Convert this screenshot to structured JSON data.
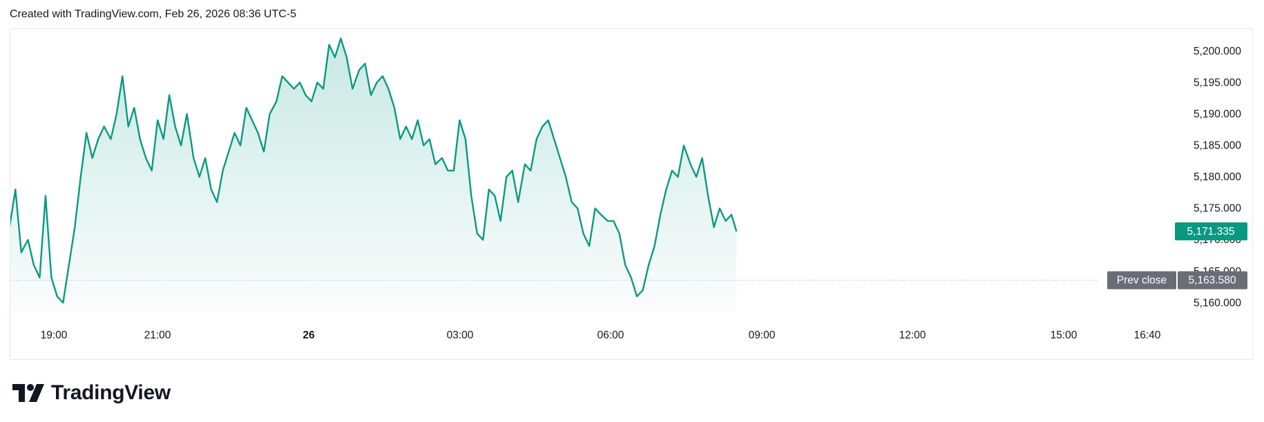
{
  "header": {
    "text": "Created with TradingView.com, Feb 26, 2026 08:36 UTC-5"
  },
  "brand": {
    "name": "TradingView",
    "icon": "tradingview-logo-icon"
  },
  "colors": {
    "line": "#089981",
    "fill_top": "rgba(8,153,129,0.22)",
    "fill_bottom": "rgba(8,153,129,0.02)",
    "prev_close_bg": "#6a6d78",
    "last_price_bg": "#089981"
  },
  "chart_data": {
    "type": "area",
    "x_ticks": [
      "19:00",
      "21:00",
      "26",
      "03:00",
      "06:00",
      "09:00",
      "12:00",
      "15:00",
      "16:40"
    ],
    "y_ticks": [
      "5,200.000",
      "5,195.000",
      "5,190.000",
      "5,185.000",
      "5,180.000",
      "5,175.000",
      "5,170.000",
      "5,165.000",
      "5,160.000"
    ],
    "ylim": [
      5158.5,
      5203.5
    ],
    "last_price": {
      "value": 5171.335,
      "label": "5,171.335"
    },
    "prev_close": {
      "value": 5163.58,
      "label": "5,163.580",
      "tag": "Prev close"
    },
    "series": [
      {
        "x": [
          "18:00",
          "18:07",
          "18:14",
          "18:21",
          "18:29",
          "18:36",
          "18:43",
          "18:50",
          "18:57",
          "19:04",
          "19:11",
          "19:18",
          "19:25",
          "19:32",
          "19:39",
          "19:46",
          "19:53",
          "20:00",
          "20:08",
          "20:15",
          "20:22",
          "20:29",
          "20:36",
          "20:43",
          "20:50",
          "20:57",
          "21:04",
          "21:11",
          "21:18",
          "21:25",
          "21:32",
          "21:39",
          "21:47",
          "21:54",
          "22:01",
          "22:08",
          "22:15",
          "22:22",
          "22:29",
          "22:36",
          "22:43",
          "22:50",
          "22:57",
          "23:04",
          "23:11",
          "23:18",
          "23:26",
          "23:33",
          "23:40",
          "23:47",
          "23:54",
          "00:01",
          "00:08",
          "00:15",
          "00:22",
          "00:29",
          "00:36",
          "00:43",
          "00:50",
          "00:57",
          "01:05",
          "01:12",
          "01:19",
          "01:26",
          "01:33",
          "01:40",
          "01:47",
          "01:54",
          "02:01",
          "02:08",
          "02:15",
          "02:22",
          "02:29",
          "02:36",
          "02:44",
          "02:51",
          "02:58",
          "03:05",
          "03:12",
          "03:19",
          "03:26",
          "03:33",
          "03:40",
          "03:47",
          "03:54",
          "04:01",
          "04:08",
          "04:15",
          "04:23",
          "04:30",
          "04:37",
          "04:44",
          "04:51",
          "04:58",
          "05:05",
          "05:12",
          "05:19",
          "05:26",
          "05:33",
          "05:40",
          "05:47",
          "05:54",
          "06:02",
          "06:09",
          "06:16",
          "06:23",
          "06:30",
          "06:37",
          "06:44",
          "06:51",
          "06:58",
          "07:05",
          "07:12",
          "07:19",
          "07:26",
          "07:33",
          "07:41",
          "07:48",
          "07:55",
          "08:02",
          "08:09",
          "08:16",
          "08:23",
          "08:30",
          "08:36"
        ],
        "values": [
          5180,
          5172,
          5178,
          5168,
          5170,
          5166,
          5164,
          5177,
          5164,
          5161,
          5160,
          5166,
          5172,
          5180,
          5187,
          5183,
          5186,
          5188,
          5186,
          5190,
          5196,
          5188,
          5191,
          5186,
          5183,
          5181,
          5189,
          5186,
          5193,
          5188,
          5185,
          5190,
          5183,
          5180,
          5183,
          5178,
          5176,
          5181,
          5184,
          5187,
          5185,
          5191,
          5189,
          5187,
          5184,
          5190,
          5192,
          5196,
          5195,
          5194,
          5195,
          5193,
          5192,
          5195,
          5194,
          5201,
          5199,
          5202,
          5199,
          5194,
          5197,
          5198,
          5193,
          5195,
          5196,
          5194,
          5191,
          5186,
          5188,
          5186,
          5189,
          5185,
          5186,
          5182,
          5183,
          5181,
          5181,
          5189,
          5186,
          5177,
          5171,
          5170,
          5178,
          5177,
          5173,
          5180,
          5181,
          5176,
          5182,
          5181,
          5186,
          5188,
          5189,
          5186,
          5183,
          5180,
          5176,
          5175,
          5171,
          5169,
          5175,
          5174,
          5173,
          5173,
          5171,
          5166,
          5164,
          5161,
          5162,
          5166,
          5169,
          5174,
          5178,
          5181,
          5180,
          5185,
          5182,
          5180,
          5183,
          5177,
          5172,
          5175,
          5173,
          5174,
          5171.335
        ]
      }
    ]
  }
}
